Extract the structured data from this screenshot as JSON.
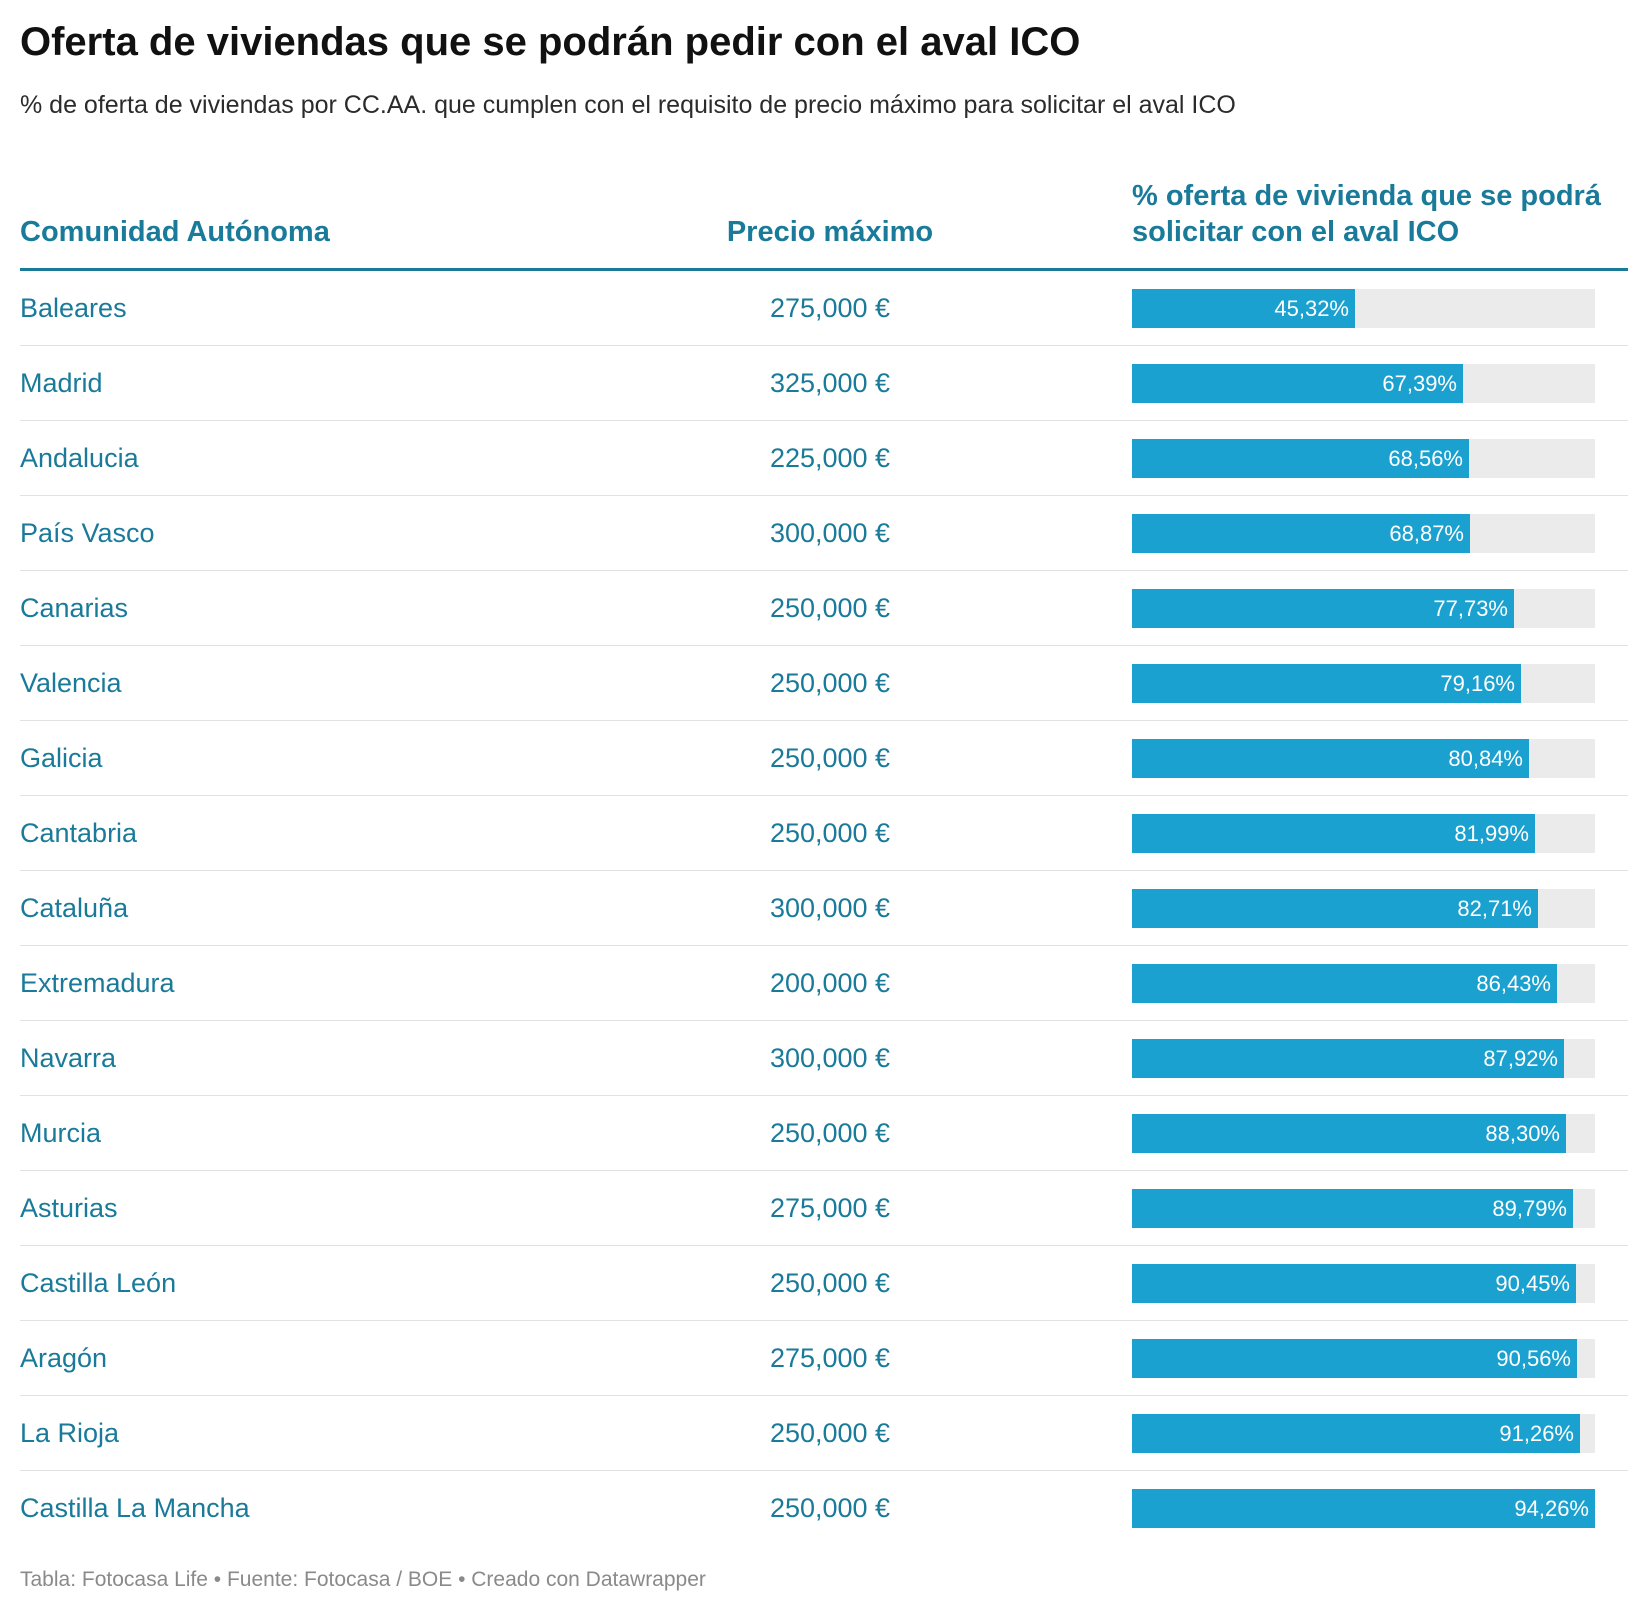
{
  "chart_data": {
    "type": "table",
    "title": "Oferta de viviendas que se podrán pedir con el aval ICO",
    "subtitle": "% de oferta de viviendas por CC.AA. que cumplen con el requisito de precio máximo para solicitar el aval ICO",
    "columns": {
      "region": "Comunidad Autónoma",
      "price": "Precio máximo",
      "percent": "% oferta de vivienda que se podrá solicitar con el aval ICO"
    },
    "percent_scale_max": 94.26,
    "rows": [
      {
        "region": "Baleares",
        "price": "275,000 €",
        "value": 45.32,
        "label": "45,32%"
      },
      {
        "region": "Madrid",
        "price": "325,000 €",
        "value": 67.39,
        "label": "67,39%"
      },
      {
        "region": "Andalucia",
        "price": "225,000 €",
        "value": 68.56,
        "label": "68,56%"
      },
      {
        "region": "País Vasco",
        "price": "300,000 €",
        "value": 68.87,
        "label": "68,87%"
      },
      {
        "region": "Canarias",
        "price": "250,000 €",
        "value": 77.73,
        "label": "77,73%"
      },
      {
        "region": "Valencia",
        "price": "250,000 €",
        "value": 79.16,
        "label": "79,16%"
      },
      {
        "region": "Galicia",
        "price": "250,000 €",
        "value": 80.84,
        "label": "80,84%"
      },
      {
        "region": "Cantabria",
        "price": "250,000 €",
        "value": 81.99,
        "label": "81,99%"
      },
      {
        "region": "Cataluña",
        "price": "300,000 €",
        "value": 82.71,
        "label": "82,71%"
      },
      {
        "region": "Extremadura",
        "price": "200,000 €",
        "value": 86.43,
        "label": "86,43%"
      },
      {
        "region": "Navarra",
        "price": "300,000 €",
        "value": 87.92,
        "label": "87,92%"
      },
      {
        "region": "Murcia",
        "price": "250,000 €",
        "value": 88.3,
        "label": "88,30%"
      },
      {
        "region": "Asturias",
        "price": "275,000 €",
        "value": 89.79,
        "label": "89,79%"
      },
      {
        "region": "Castilla León",
        "price": "250,000 €",
        "value": 90.45,
        "label": "90,45%"
      },
      {
        "region": "Aragón",
        "price": "275,000 €",
        "value": 90.56,
        "label": "90,56%"
      },
      {
        "region": "La Rioja",
        "price": "250,000 €",
        "value": 91.26,
        "label": "91,26%"
      },
      {
        "region": "Castilla La Mancha",
        "price": "250,000 €",
        "value": 94.26,
        "label": "94,26%"
      }
    ],
    "footer": "Tabla: Fotocasa Life • Fuente: Fotocasa / BOE • Creado con Datawrapper",
    "colors": {
      "header_text": "#1a7a9a",
      "bar": "#1ba1cf",
      "bar_track": "#ebebeb",
      "row_text": "#1a7a9a"
    }
  }
}
